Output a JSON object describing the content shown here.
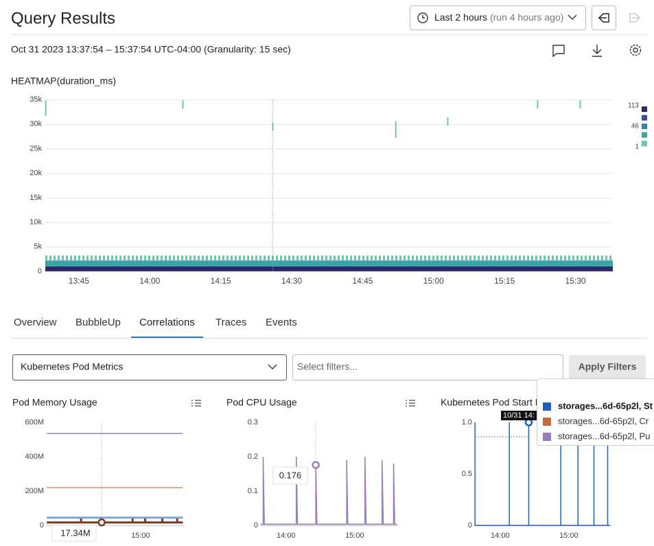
{
  "header": {
    "title": "Query Results",
    "time_range": "Last 2 hours",
    "time_note": "(run 4 hours ago)",
    "subtitle": "Oct 31 2023 13:37:54 – 15:37:54 UTC-04:00 (Granularity: 15 sec)"
  },
  "heatmap": {
    "type": "heatmap",
    "title": "HEATMAP(duration_ms)",
    "xlim": [
      "13:37:54",
      "15:37:54"
    ],
    "xticks": [
      "13:45",
      "14:00",
      "14:15",
      "14:30",
      "14:45",
      "15:00",
      "15:15",
      "15:30"
    ],
    "ylim": [
      0,
      35000
    ],
    "yticks": [
      0,
      {
        "value": 5000,
        "label": "5k"
      },
      {
        "value": 10000,
        "label": "10k"
      },
      {
        "value": 15000,
        "label": "15k"
      },
      {
        "value": 20000,
        "label": "20k"
      },
      {
        "value": 25000,
        "label": "25k"
      },
      {
        "value": 30000,
        "label": "30k"
      },
      {
        "value": 35000,
        "label": "35k"
      }
    ],
    "grid": true,
    "cursor": "14:26",
    "legend": {
      "ticks": [
        113,
        46,
        1
      ],
      "colors": [
        "#2d2a6b",
        "#2f4f9a",
        "#2b86a8",
        "#3aa6a8",
        "#6cc6b0"
      ]
    },
    "band": [
      {
        "y0": 0,
        "y1": 1000,
        "count": 113,
        "color": "#2d2a6b"
      },
      {
        "y0": 1000,
        "y1": 2200,
        "count": 46,
        "color": "#3aa6a8"
      },
      {
        "y0": 2200,
        "y1": 3200,
        "count": 1,
        "color": "#6cc6b0"
      }
    ],
    "cells": [
      {
        "x": "13:38",
        "y": 34000,
        "count": 1
      },
      {
        "x": "13:38",
        "y": 32500,
        "count": 1
      },
      {
        "x": "14:07",
        "y": 34000,
        "count": 1
      },
      {
        "x": "14:26",
        "y": 29500,
        "count": 1
      },
      {
        "x": "14:52",
        "y": 29700,
        "count": 1
      },
      {
        "x": "14:52",
        "y": 28000,
        "count": 1
      },
      {
        "x": "15:03",
        "y": 30500,
        "count": 1
      },
      {
        "x": "15:22",
        "y": 34000,
        "count": 1
      },
      {
        "x": "15:31",
        "y": 34000,
        "count": 1
      }
    ]
  },
  "tabs": [
    "Overview",
    "BubbleUp",
    "Correlations",
    "Traces",
    "Events"
  ],
  "active_tab": 2,
  "filters": {
    "dataset": "Kubernetes Pod Metrics",
    "placeholder": "Select filters...",
    "button": "Apply Filters"
  },
  "charts": [
    {
      "type": "line",
      "title": "Pod Memory Usage",
      "xlim": [
        "13:37:54",
        "15:37:54"
      ],
      "xticks": [
        "15:00"
      ],
      "ylim": [
        0,
        600000000
      ],
      "yticks": [
        0,
        {
          "value": 200000000,
          "label": "200M"
        },
        {
          "value": 400000000,
          "label": "400M"
        },
        {
          "value": 600000000,
          "label": "600M"
        }
      ],
      "series": [
        {
          "color": "#9a7bbf",
          "x": [
            "13:38",
            "15:37"
          ],
          "values": [
            535000000,
            535000000
          ]
        },
        {
          "color": "#e08a6a",
          "x": [
            "13:38",
            "15:37"
          ],
          "values": [
            220000000,
            220000000
          ]
        },
        {
          "color": "#7fa3d6",
          "x": [
            "13:38",
            "15:37"
          ],
          "values": [
            45000000,
            45000000
          ]
        },
        {
          "color": "#7a3b1f",
          "x": [
            "13:38",
            "14:08",
            "14:08",
            "14:08",
            "14:53",
            "14:53",
            "14:53",
            "15:04",
            "15:04",
            "15:04",
            "15:19",
            "15:19",
            "15:19",
            "15:32",
            "15:32",
            "15:32",
            "15:37"
          ],
          "values": [
            17000000,
            17000000,
            40000000,
            17000000,
            17000000,
            40000000,
            17000000,
            17000000,
            40000000,
            17000000,
            17000000,
            40000000,
            17000000,
            17000000,
            40000000,
            17000000,
            17000000
          ]
        }
      ],
      "tooltip": {
        "x": "14:26",
        "value": 17340000,
        "label": "17.34M",
        "color": "#7a3b1f"
      }
    },
    {
      "type": "line",
      "title": "Pod CPU Usage",
      "xlim": [
        "13:37:54",
        "15:37:54"
      ],
      "xticks": [
        "14:00",
        "15:00"
      ],
      "ylim": [
        0,
        0.3
      ],
      "yticks": [
        0,
        0.1,
        0.2,
        0.3
      ],
      "series": [
        {
          "color": "#c9cf8f",
          "x": [
            "13:38",
            "15:37"
          ],
          "values": [
            0.004,
            0.004
          ]
        },
        {
          "color": "#9a7bbf",
          "x": [
            "13:38",
            "13:40",
            "13:40",
            "13:41",
            "14:09",
            "14:09",
            "14:10",
            "14:26",
            "14:26",
            "14:27",
            "14:53",
            "14:53",
            "14:54",
            "15:09",
            "15:09",
            "15:10",
            "15:24",
            "15:24",
            "15:25",
            "15:34",
            "15:34",
            "15:35",
            "15:37"
          ],
          "values": [
            0.003,
            0.003,
            0.2,
            0.003,
            0.003,
            0.2,
            0.003,
            0.003,
            0.176,
            0.003,
            0.003,
            0.19,
            0.003,
            0.003,
            0.2,
            0.003,
            0.003,
            0.19,
            0.003,
            0.003,
            0.18,
            0.003,
            0.003
          ]
        }
      ],
      "tooltip": {
        "x": "14:26",
        "value": 0.176,
        "color": "#9a7bbf"
      }
    },
    {
      "type": "line",
      "title": "Kubernetes Pod Start E",
      "xlim": [
        "13:37:54",
        "15:37:54"
      ],
      "xticks": [
        "14:00",
        "15:00"
      ],
      "ylim": [
        0,
        1
      ],
      "yticks": [
        0,
        0.5,
        {
          "value": 1,
          "label": "1.0"
        }
      ],
      "series": [
        {
          "color": "#1f5fbf",
          "x": [
            "13:38",
            "13:38",
            "13:38",
            "14:08",
            "14:08",
            "14:08",
            "14:25",
            "14:25",
            "14:25",
            "14:53",
            "14:53",
            "14:53",
            "15:08",
            "15:08",
            "15:08",
            "15:22",
            "15:22",
            "15:22",
            "15:34",
            "15:34",
            "15:34",
            "15:36"
          ],
          "values": [
            0,
            1,
            0,
            0,
            1,
            0,
            0,
            1,
            0,
            0,
            1,
            0,
            0,
            1,
            0,
            0,
            1,
            0,
            0,
            1,
            0,
            0
          ]
        }
      ],
      "tooltip": {
        "x": "14:25",
        "value": 1,
        "label": "10/31 14:",
        "color": "#1f5fbf"
      },
      "legend": [
        {
          "color": "#1f5fbf",
          "label": "storages...6d-65p2l, St"
        },
        {
          "color": "#c8693f",
          "label": "storages...6d-65p2l, Cr"
        },
        {
          "color": "#9a7bbf",
          "label": "storages...6d-65p2l, Pu"
        }
      ]
    }
  ]
}
